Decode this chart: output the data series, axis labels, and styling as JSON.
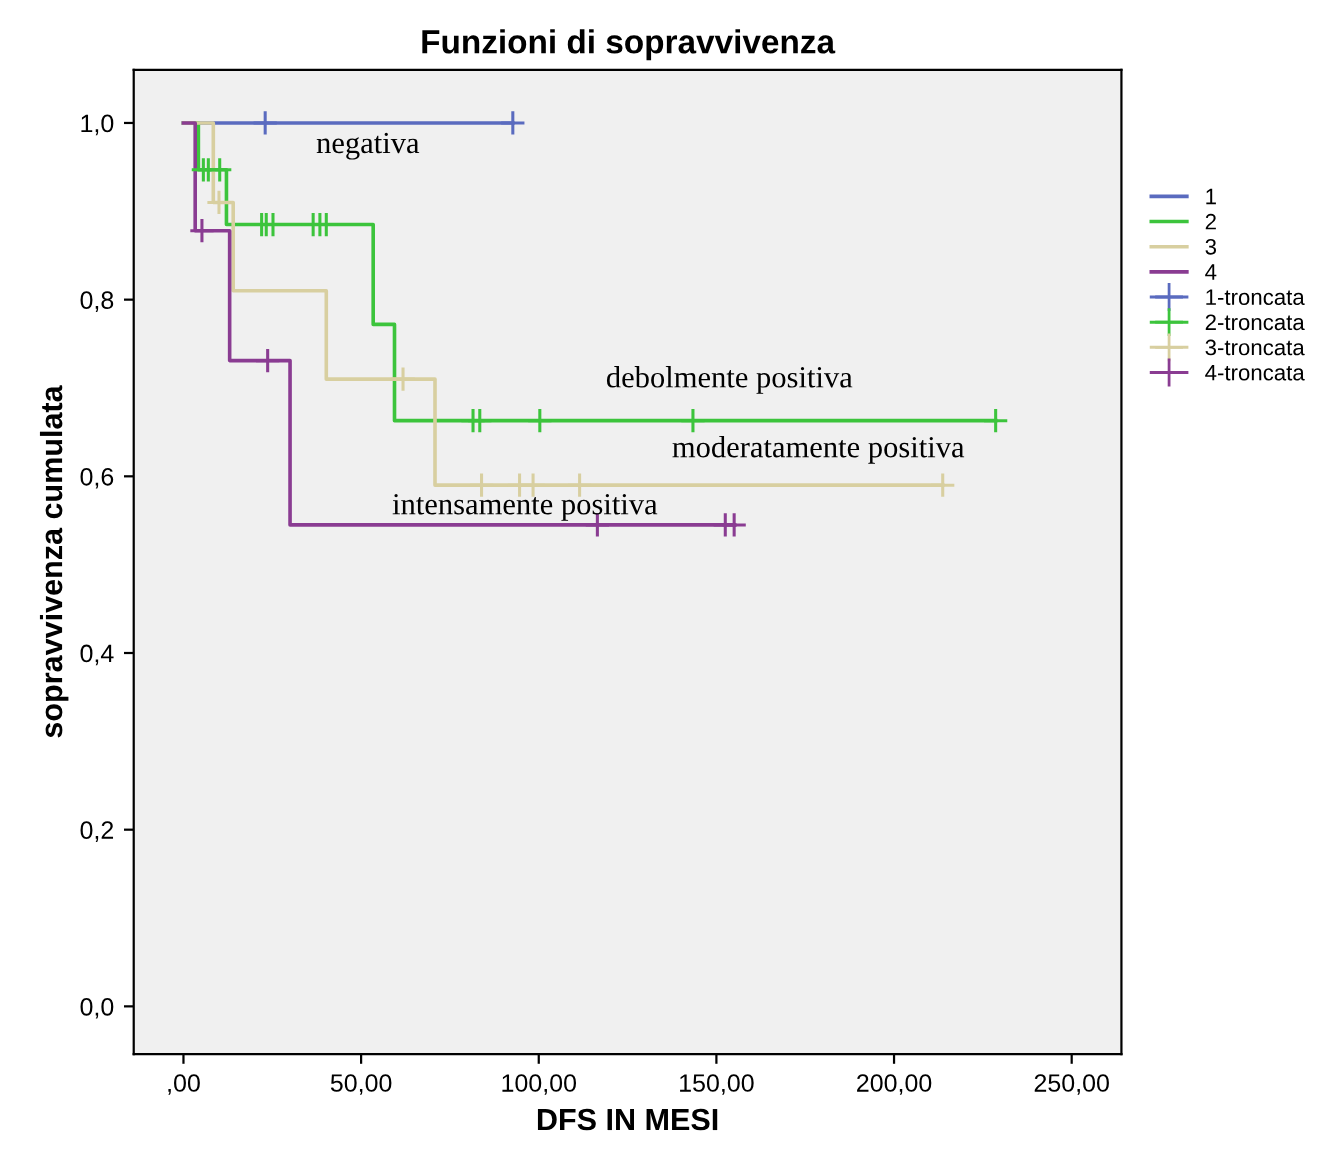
{
  "chart_data": {
    "type": "step",
    "title": "Funzioni di sopravvivenza",
    "xlabel": "DFS IN MESI",
    "ylabel": "sopravvivenza cumulata",
    "xlim": [
      -14,
      264
    ],
    "ylim": [
      -0.054,
      1.06
    ],
    "xticks": [
      {
        "value": 0,
        "label": ",00"
      },
      {
        "value": 50,
        "label": "50,00"
      },
      {
        "value": 100,
        "label": "100,00"
      },
      {
        "value": 150,
        "label": "150,00"
      },
      {
        "value": 200,
        "label": "200,00"
      },
      {
        "value": 250,
        "label": "250,00"
      }
    ],
    "yticks": [
      {
        "value": 0,
        "label": "0,0"
      },
      {
        "value": 0.2,
        "label": "0,2"
      },
      {
        "value": 0.4,
        "label": "0,4"
      },
      {
        "value": 0.6,
        "label": "0,6"
      },
      {
        "value": 0.8,
        "label": "0,8"
      },
      {
        "value": 1.0,
        "label": "1,0"
      }
    ],
    "grid": false,
    "legend": "right",
    "series": [
      {
        "name": "1",
        "color": "#5a6bbf",
        "x": [
          0,
          92.7
        ],
        "values": [
          1.0,
          1.0
        ]
      },
      {
        "name": "2",
        "color": "#3cc43c",
        "x": [
          0,
          4.2,
          12.1,
          53.4,
          59.4,
          228.6
        ],
        "values": [
          1.0,
          0.947,
          0.885,
          0.772,
          0.663,
          0.663
        ]
      },
      {
        "name": "3",
        "color": "#d8cfa0",
        "x": [
          0,
          8.4,
          14,
          40.2,
          70.8,
          213.7
        ],
        "values": [
          1.0,
          0.91,
          0.81,
          0.71,
          0.59,
          0.59
        ]
      },
      {
        "name": "4",
        "color": "#8a3c92",
        "x": [
          0,
          3.3,
          13,
          30,
          155
        ],
        "values": [
          1.0,
          0.878,
          0.731,
          0.545,
          0.545
        ]
      },
      {
        "name": "1-troncata",
        "type": "scatter",
        "marker": "cross",
        "color": "#5a6bbf",
        "x": [
          23,
          92.7
        ],
        "values": [
          1.0,
          1.0
        ]
      },
      {
        "name": "2-troncata",
        "type": "scatter",
        "marker": "cross",
        "color": "#3cc43c",
        "x": [
          5.6,
          7.0,
          10.2,
          22,
          23.3,
          25.2,
          36.5,
          38.4,
          40.2,
          81.5,
          83.4,
          100.3,
          143.4,
          228.6
        ],
        "values": [
          0.947,
          0.947,
          0.947,
          0.885,
          0.885,
          0.885,
          0.885,
          0.885,
          0.885,
          0.663,
          0.663,
          0.663,
          0.663,
          0.663
        ]
      },
      {
        "name": "3-troncata",
        "type": "scatter",
        "marker": "cross",
        "color": "#d8cfa0",
        "x": [
          10,
          61.8,
          83.9,
          94.6,
          98.4,
          111.5,
          213.7
        ],
        "values": [
          0.91,
          0.71,
          0.59,
          0.59,
          0.59,
          0.59,
          0.59
        ]
      },
      {
        "name": "4-troncata",
        "type": "scatter",
        "marker": "cross",
        "color": "#8a3c92",
        "x": [
          5.2,
          23.7,
          116.5,
          152.5,
          155
        ],
        "values": [
          0.878,
          0.731,
          0.545,
          0.545,
          0.545
        ]
      }
    ],
    "annotations": [
      "negativa",
      "debolmente positiva",
      "moderatamente positiva",
      "intensamente positiva"
    ]
  }
}
